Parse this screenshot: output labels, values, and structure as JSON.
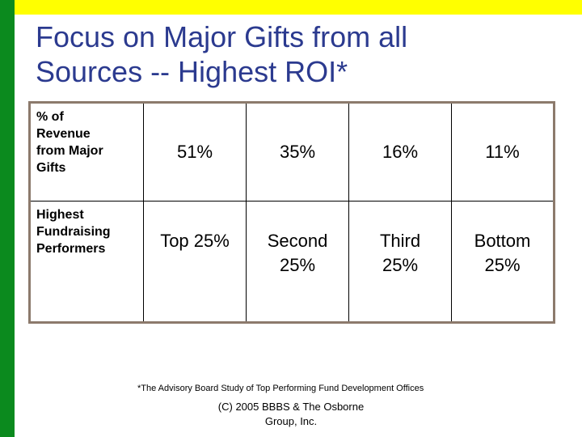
{
  "colors": {
    "left_bar": "#0b8a1e",
    "top_bar": "#ffff00",
    "title": "#2b3a8f",
    "table_border": "#8c7a6c"
  },
  "slide": {
    "title_lines": [
      "Focus on Major Gifts from all",
      "Sources -- Highest ROI*"
    ]
  },
  "table": {
    "rows": [
      {
        "header_lines": [
          "% of",
          "Revenue",
          "from Major",
          "Gifts"
        ],
        "cells": [
          [
            "51%"
          ],
          [
            "35%"
          ],
          [
            "16%"
          ],
          [
            "11%"
          ]
        ]
      },
      {
        "header_lines": [
          "Highest",
          "Fundraising",
          "Performers"
        ],
        "cells": [
          [
            "Top 25%"
          ],
          [
            "Second",
            "25%"
          ],
          [
            "Third",
            "25%"
          ],
          [
            "Bottom",
            "25%"
          ]
        ]
      }
    ]
  },
  "footnote": "*The Advisory Board Study of Top Performing Fund Development Offices",
  "copyright_lines": [
    "(C) 2005 BBBS & The Osborne",
    "Group, Inc."
  ]
}
